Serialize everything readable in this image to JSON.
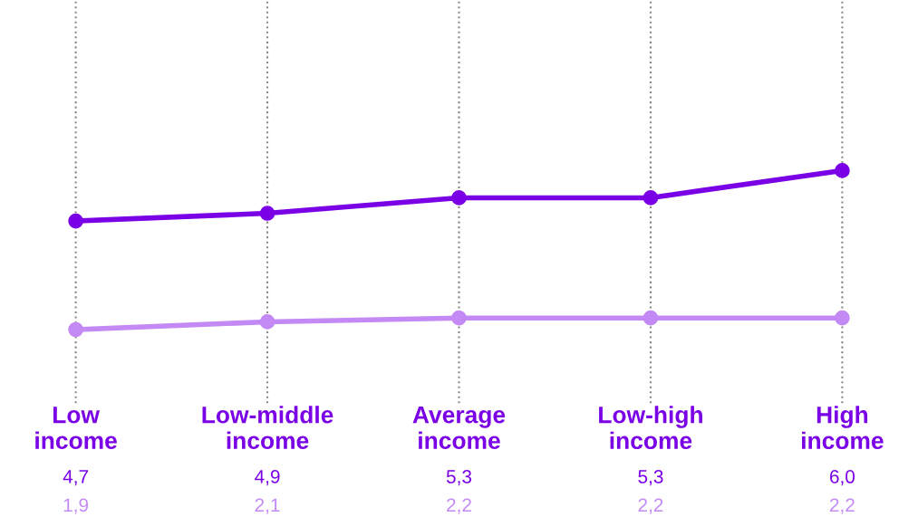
{
  "chart_data": {
    "type": "line",
    "categories": [
      "Low\nincome",
      "Low-middle\nincome",
      "Average\nincome",
      "Low-high\nincome",
      "High\nincome"
    ],
    "series": [
      {
        "color": "#7a00e6",
        "values": [
          4.7,
          4.9,
          5.3,
          5.3,
          6.0
        ],
        "value_labels": [
          "4,7",
          "4,9",
          "5,3",
          "5,3",
          "6,0"
        ]
      },
      {
        "color": "#c389f5",
        "values": [
          1.9,
          2.1,
          2.2,
          2.2,
          2.2
        ],
        "value_labels": [
          "1,9",
          "2,1",
          "2,2",
          "2,2",
          "2,2"
        ]
      }
    ],
    "ylim": [
      0,
      10.4
    ],
    "grid": "x",
    "marker": "circle",
    "line_style": "solid",
    "tick_labels": "x"
  }
}
